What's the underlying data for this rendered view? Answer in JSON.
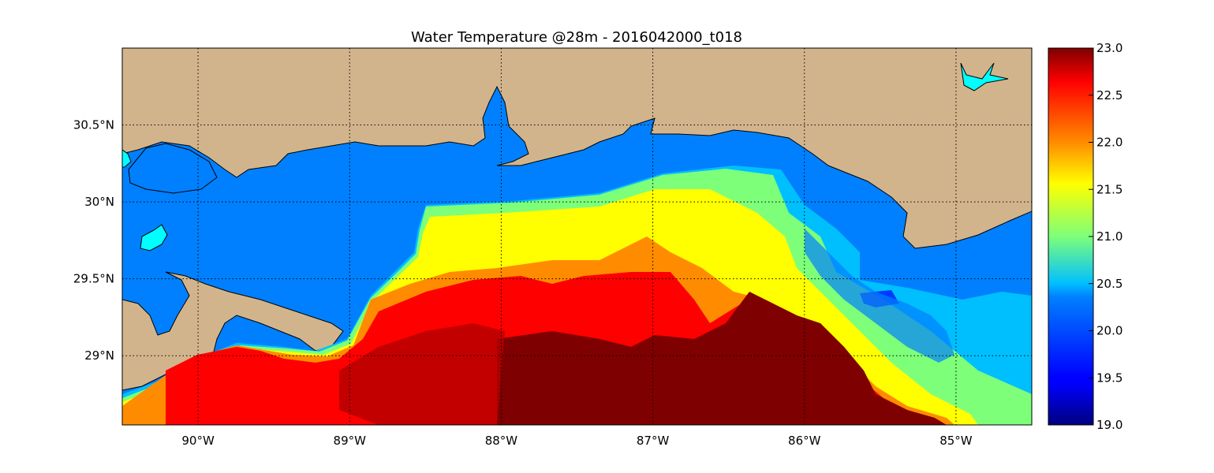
{
  "title": "Water Temperature @28m - 2016042000_t018",
  "map": {
    "lon_range": [
      -90.5,
      -84.5
    ],
    "lat_range": [
      28.55,
      31.0
    ],
    "land_color": "#d2b48c",
    "water_color": "#0080ff",
    "lake_color": "#00ffff",
    "lon_ticks": [
      {
        "value": -90,
        "label": "90°W"
      },
      {
        "value": -89,
        "label": "89°W"
      },
      {
        "value": -88,
        "label": "88°W"
      },
      {
        "value": -87,
        "label": "87°W"
      },
      {
        "value": -86,
        "label": "86°W"
      },
      {
        "value": -85,
        "label": "85°W"
      }
    ],
    "lat_ticks": [
      {
        "value": 30.5,
        "label": "30.5°N"
      },
      {
        "value": 30.0,
        "label": "30°N"
      },
      {
        "value": 29.5,
        "label": "29.5°N"
      },
      {
        "value": 29.0,
        "label": "29°N"
      }
    ],
    "grid": true
  },
  "colorbar": {
    "colormap": "jet",
    "range": [
      19.0,
      23.0
    ],
    "ticks": [
      "19.0",
      "19.5",
      "20.0",
      "20.5",
      "21.0",
      "21.5",
      "22.0",
      "22.5",
      "23.0"
    ]
  }
}
